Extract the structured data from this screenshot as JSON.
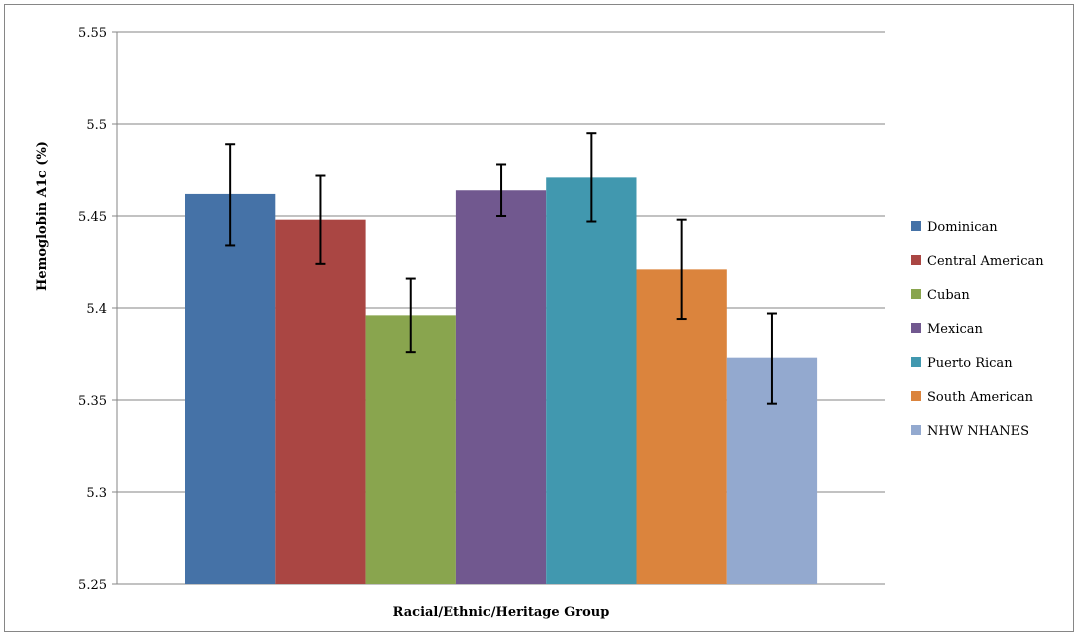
{
  "chart_data": {
    "type": "bar",
    "title": "",
    "xlabel": "Racial/Ethnic/Heritage Group",
    "ylabel": "Hemoglobin A1c (%)",
    "ylim": [
      5.25,
      5.55
    ],
    "yticks": [
      "5.25",
      "5.3",
      "5.35",
      "5.4",
      "5.45",
      "5.5",
      "5.55"
    ],
    "grid": "horizontal",
    "legend_position": "right",
    "series": [
      {
        "name": "Dominican",
        "value": 5.462,
        "error_low": 5.434,
        "error_high": 5.489,
        "color": "#4572a7"
      },
      {
        "name": "Central American",
        "value": 5.448,
        "error_low": 5.424,
        "error_high": 5.472,
        "color": "#aa4643"
      },
      {
        "name": "Cuban",
        "value": 5.396,
        "error_low": 5.376,
        "error_high": 5.416,
        "color": "#89a54e"
      },
      {
        "name": "Mexican",
        "value": 5.464,
        "error_low": 5.45,
        "error_high": 5.478,
        "color": "#71588f"
      },
      {
        "name": "Puerto Rican",
        "value": 5.471,
        "error_low": 5.447,
        "error_high": 5.495,
        "color": "#4198af"
      },
      {
        "name": "South American",
        "value": 5.421,
        "error_low": 5.394,
        "error_high": 5.448,
        "color": "#db843d"
      },
      {
        "name": "NHW NHANES",
        "value": 5.373,
        "error_low": 5.348,
        "error_high": 5.397,
        "color": "#93a9cf"
      }
    ]
  }
}
